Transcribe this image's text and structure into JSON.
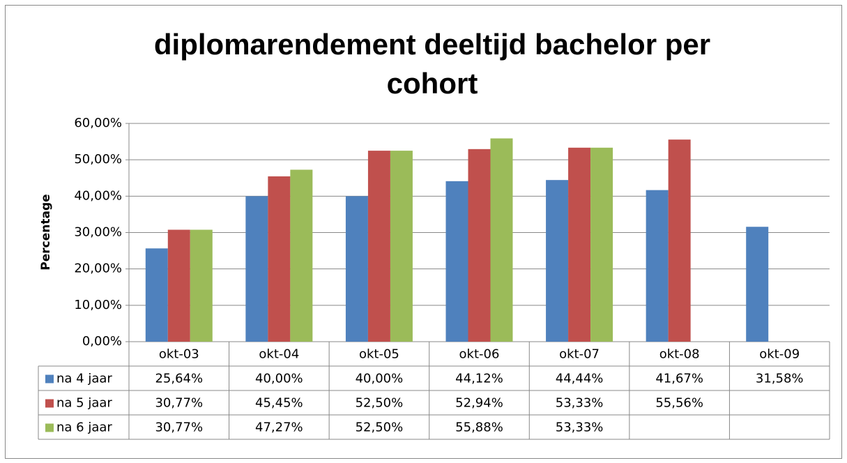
{
  "chart_data": {
    "type": "bar",
    "title": "diplomarendement deeltijd bachelor per cohort",
    "y_label": "Percentage",
    "categories": [
      "okt-03",
      "okt-04",
      "okt-05",
      "okt-06",
      "okt-07",
      "okt-08",
      "okt-09"
    ],
    "series": [
      {
        "name": "na 4 jaar",
        "color": "#4f81bd",
        "values": [
          25.64,
          40,
          40,
          44.12,
          44.44,
          41.67,
          31.58
        ],
        "value_labels": [
          "25,64%",
          "40,00%",
          "40,00%",
          "44,12%",
          "44,44%",
          "41,67%",
          "31,58%"
        ]
      },
      {
        "name": "na 5 jaar",
        "color": "#c0504d",
        "values": [
          30.77,
          45.45,
          52.5,
          52.94,
          53.33,
          55.56,
          null
        ],
        "value_labels": [
          "30,77%",
          "45,45%",
          "52,50%",
          "52,94%",
          "53,33%",
          "55,56%",
          null
        ]
      },
      {
        "name": "na 6 jaar",
        "color": "#9bbb59",
        "values": [
          30.77,
          47.27,
          52.5,
          55.88,
          53.33,
          null,
          null
        ],
        "value_labels": [
          "30,77%",
          "47,27%",
          "52,50%",
          "55,88%",
          "53,33%",
          null,
          null
        ]
      }
    ],
    "ylim": [
      0,
      60
    ],
    "yticks": [
      {
        "value": 0,
        "label": "0,00%"
      },
      {
        "value": 10,
        "label": "10,00%"
      },
      {
        "value": 20,
        "label": "20,00%"
      },
      {
        "value": 30,
        "label": "30,00%"
      },
      {
        "value": 40,
        "label": "40,00%"
      },
      {
        "value": 50,
        "label": "50,00%"
      },
      {
        "value": 60,
        "label": "60,00%"
      }
    ],
    "grid": true
  }
}
